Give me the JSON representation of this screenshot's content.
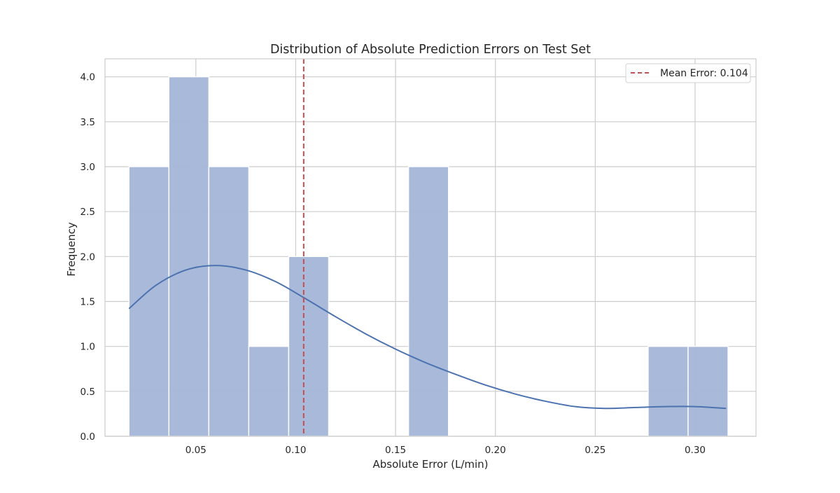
{
  "chart_data": {
    "type": "bar",
    "subtype": "histogram-with-kde",
    "title": "Distribution of Absolute Prediction Errors on Test Set",
    "xlabel": "Absolute Error (L/min)",
    "ylabel": "Frequency",
    "xlim": [
      0.0045,
      0.3305
    ],
    "ylim": [
      0,
      4.2
    ],
    "xticks": [
      0.05,
      0.1,
      0.15,
      0.2,
      0.25,
      0.3
    ],
    "xtick_labels": [
      "0.05",
      "0.10",
      "0.15",
      "0.20",
      "0.25",
      "0.30"
    ],
    "yticks": [
      0,
      0.5,
      1.0,
      1.5,
      2.0,
      2.5,
      3.0,
      3.5,
      4.0
    ],
    "ytick_labels": [
      "0.0",
      "0.5",
      "1.0",
      "1.5",
      "2.0",
      "2.5",
      "3.0",
      "3.5",
      "4.0"
    ],
    "grid": true,
    "bar_color": "#a5b7d8",
    "kde_color": "#4c72b0",
    "mean_line_color": "#c44e52",
    "bins": [
      {
        "start": 0.0165,
        "end": 0.0365,
        "count": 3
      },
      {
        "start": 0.0365,
        "end": 0.0565,
        "count": 4
      },
      {
        "start": 0.0565,
        "end": 0.0765,
        "count": 3
      },
      {
        "start": 0.0765,
        "end": 0.0965,
        "count": 1
      },
      {
        "start": 0.0965,
        "end": 0.1165,
        "count": 2
      },
      {
        "start": 0.1165,
        "end": 0.1365,
        "count": 0
      },
      {
        "start": 0.1365,
        "end": 0.1565,
        "count": 0
      },
      {
        "start": 0.1565,
        "end": 0.1765,
        "count": 3
      },
      {
        "start": 0.1765,
        "end": 0.1965,
        "count": 0
      },
      {
        "start": 0.1965,
        "end": 0.2165,
        "count": 0
      },
      {
        "start": 0.2165,
        "end": 0.2365,
        "count": 0
      },
      {
        "start": 0.2365,
        "end": 0.2565,
        "count": 0
      },
      {
        "start": 0.2565,
        "end": 0.2765,
        "count": 0
      },
      {
        "start": 0.2765,
        "end": 0.2965,
        "count": 1
      },
      {
        "start": 0.2965,
        "end": 0.3165,
        "count": 1
      }
    ],
    "kde": {
      "x": [
        0.0165,
        0.03,
        0.045,
        0.06,
        0.075,
        0.09,
        0.105,
        0.12,
        0.135,
        0.15,
        0.165,
        0.18,
        0.195,
        0.21,
        0.225,
        0.24,
        0.255,
        0.27,
        0.285,
        0.3,
        0.3155
      ],
      "y": [
        1.42,
        1.68,
        1.85,
        1.9,
        1.85,
        1.72,
        1.53,
        1.33,
        1.14,
        0.97,
        0.82,
        0.69,
        0.57,
        0.47,
        0.39,
        0.33,
        0.31,
        0.32,
        0.33,
        0.33,
        0.31
      ]
    },
    "mean_line": {
      "x": 0.104,
      "label": "Mean Error: 0.104"
    },
    "legend": {
      "placement": "upper-right",
      "entries": [
        "Mean Error: 0.104"
      ]
    }
  }
}
